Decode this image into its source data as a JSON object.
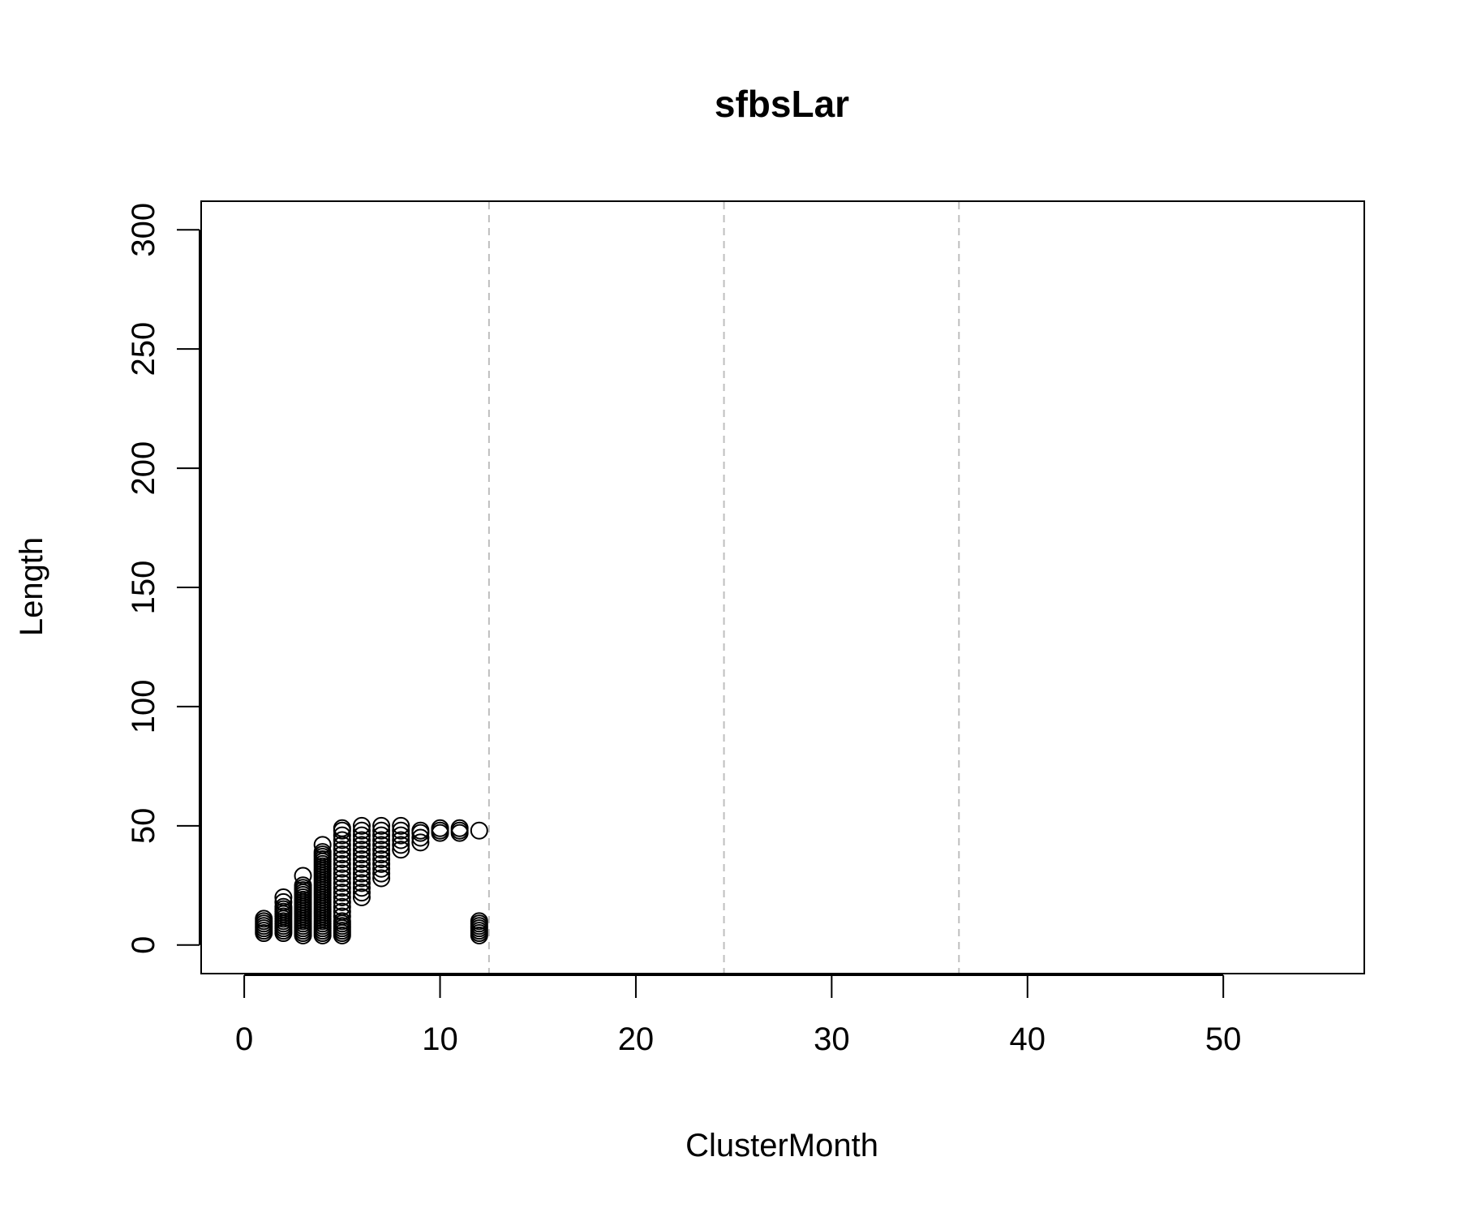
{
  "chart_data": {
    "type": "scatter",
    "title": "sfbsLar",
    "xlabel": "ClusterMonth",
    "ylabel": "Length",
    "xlim": [
      -2.2,
      57.2
    ],
    "ylim": [
      -12,
      312
    ],
    "x_ticks": [
      0,
      10,
      20,
      30,
      40,
      50
    ],
    "x_tick_labels": [
      "0",
      "10",
      "20",
      "30",
      "40",
      "50"
    ],
    "y_ticks": [
      0,
      50,
      100,
      150,
      200,
      250,
      300
    ],
    "y_tick_labels": [
      "0",
      "50",
      "100",
      "150",
      "200",
      "250",
      "300"
    ],
    "grid": false,
    "reference_lines": {
      "orientation": "vertical",
      "style": "dashed",
      "color": "#bebebe",
      "x": [
        12.5,
        24.5,
        36.5
      ]
    },
    "marker": "open-circle",
    "series": [
      {
        "name": "Length",
        "points": [
          [
            1,
            5
          ],
          [
            1,
            6
          ],
          [
            1,
            7
          ],
          [
            1,
            8
          ],
          [
            1,
            9
          ],
          [
            1,
            10
          ],
          [
            1,
            11
          ],
          [
            2,
            5
          ],
          [
            2,
            6
          ],
          [
            2,
            7
          ],
          [
            2,
            8
          ],
          [
            2,
            9
          ],
          [
            2,
            10
          ],
          [
            2,
            11
          ],
          [
            2,
            12
          ],
          [
            2,
            13
          ],
          [
            2,
            14
          ],
          [
            2,
            15
          ],
          [
            2,
            16
          ],
          [
            2,
            18
          ],
          [
            2,
            20
          ],
          [
            3,
            4
          ],
          [
            3,
            5
          ],
          [
            3,
            6
          ],
          [
            3,
            7
          ],
          [
            3,
            8
          ],
          [
            3,
            9
          ],
          [
            3,
            10
          ],
          [
            3,
            11
          ],
          [
            3,
            12
          ],
          [
            3,
            13
          ],
          [
            3,
            14
          ],
          [
            3,
            15
          ],
          [
            3,
            16
          ],
          [
            3,
            17
          ],
          [
            3,
            18
          ],
          [
            3,
            19
          ],
          [
            3,
            20
          ],
          [
            3,
            21
          ],
          [
            3,
            22
          ],
          [
            3,
            23
          ],
          [
            3,
            24
          ],
          [
            3,
            25
          ],
          [
            3,
            29
          ],
          [
            4,
            4
          ],
          [
            4,
            5
          ],
          [
            4,
            6
          ],
          [
            4,
            7
          ],
          [
            4,
            8
          ],
          [
            4,
            9
          ],
          [
            4,
            10
          ],
          [
            4,
            11
          ],
          [
            4,
            12
          ],
          [
            4,
            13
          ],
          [
            4,
            14
          ],
          [
            4,
            15
          ],
          [
            4,
            16
          ],
          [
            4,
            17
          ],
          [
            4,
            18
          ],
          [
            4,
            19
          ],
          [
            4,
            20
          ],
          [
            4,
            21
          ],
          [
            4,
            22
          ],
          [
            4,
            23
          ],
          [
            4,
            24
          ],
          [
            4,
            25
          ],
          [
            4,
            26
          ],
          [
            4,
            27
          ],
          [
            4,
            28
          ],
          [
            4,
            29
          ],
          [
            4,
            30
          ],
          [
            4,
            31
          ],
          [
            4,
            32
          ],
          [
            4,
            33
          ],
          [
            4,
            34
          ],
          [
            4,
            35
          ],
          [
            4,
            36
          ],
          [
            4,
            37
          ],
          [
            4,
            38
          ],
          [
            4,
            39
          ],
          [
            4,
            42
          ],
          [
            5,
            4
          ],
          [
            5,
            5
          ],
          [
            5,
            6
          ],
          [
            5,
            7
          ],
          [
            5,
            8
          ],
          [
            5,
            9
          ],
          [
            5,
            10
          ],
          [
            5,
            12
          ],
          [
            5,
            14
          ],
          [
            5,
            16
          ],
          [
            5,
            18
          ],
          [
            5,
            20
          ],
          [
            5,
            22
          ],
          [
            5,
            24
          ],
          [
            5,
            26
          ],
          [
            5,
            28
          ],
          [
            5,
            30
          ],
          [
            5,
            32
          ],
          [
            5,
            34
          ],
          [
            5,
            36
          ],
          [
            5,
            38
          ],
          [
            5,
            40
          ],
          [
            5,
            42
          ],
          [
            5,
            44
          ],
          [
            5,
            46
          ],
          [
            5,
            48
          ],
          [
            5,
            49
          ],
          [
            6,
            20
          ],
          [
            6,
            22
          ],
          [
            6,
            24
          ],
          [
            6,
            26
          ],
          [
            6,
            28
          ],
          [
            6,
            30
          ],
          [
            6,
            32
          ],
          [
            6,
            34
          ],
          [
            6,
            36
          ],
          [
            6,
            38
          ],
          [
            6,
            40
          ],
          [
            6,
            42
          ],
          [
            6,
            44
          ],
          [
            6,
            46
          ],
          [
            6,
            48
          ],
          [
            6,
            50
          ],
          [
            7,
            28
          ],
          [
            7,
            30
          ],
          [
            7,
            32
          ],
          [
            7,
            34
          ],
          [
            7,
            36
          ],
          [
            7,
            38
          ],
          [
            7,
            40
          ],
          [
            7,
            42
          ],
          [
            7,
            44
          ],
          [
            7,
            46
          ],
          [
            7,
            48
          ],
          [
            7,
            50
          ],
          [
            8,
            40
          ],
          [
            8,
            42
          ],
          [
            8,
            44
          ],
          [
            8,
            46
          ],
          [
            8,
            48
          ],
          [
            8,
            50
          ],
          [
            9,
            43
          ],
          [
            9,
            45
          ],
          [
            9,
            47
          ],
          [
            9,
            48
          ],
          [
            10,
            47
          ],
          [
            10,
            48
          ],
          [
            10,
            49
          ],
          [
            11,
            47
          ],
          [
            11,
            48
          ],
          [
            11,
            49
          ],
          [
            12,
            48
          ],
          [
            12,
            4
          ],
          [
            12,
            5
          ],
          [
            12,
            6
          ],
          [
            12,
            7
          ],
          [
            12,
            8
          ],
          [
            12,
            9
          ],
          [
            12,
            10
          ]
        ]
      }
    ]
  }
}
